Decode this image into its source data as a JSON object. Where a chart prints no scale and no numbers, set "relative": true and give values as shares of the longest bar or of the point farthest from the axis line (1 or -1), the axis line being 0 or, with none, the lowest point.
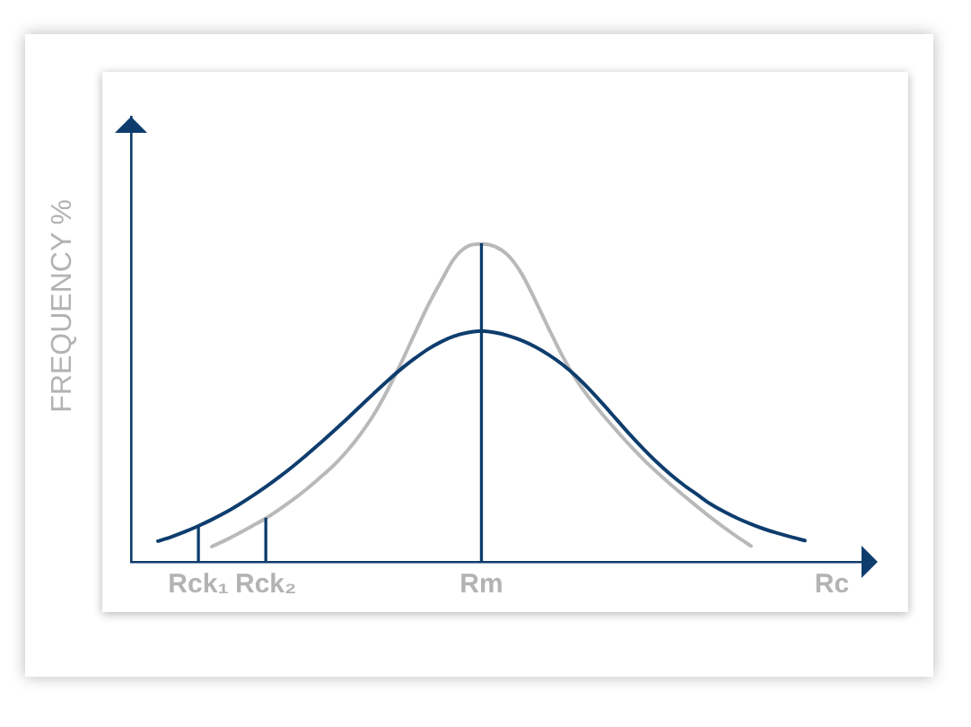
{
  "chart_data": {
    "type": "line",
    "ylabel": "FREQUENCY %",
    "relative": true,
    "marker": "none",
    "grid": false,
    "tick_labels": "x",
    "categories": [
      null,
      null,
      null,
      null,
      null,
      "Rck₁",
      null,
      null,
      null,
      null,
      "Rck₂",
      null,
      null,
      null,
      null,
      null,
      null,
      null,
      null,
      null,
      null,
      null,
      null,
      null,
      null,
      null,
      "Rm",
      null,
      null,
      null,
      null,
      null,
      null,
      null,
      null,
      null,
      null,
      null,
      null,
      null,
      null,
      null,
      null,
      null,
      null,
      null,
      null,
      null,
      null,
      null,
      null,
      null,
      "Rc",
      null,
      null,
      null
    ],
    "series": [
      {
        "color": "#b9b9b9",
        "values": [
          null,
          null,
          null,
          null,
          null,
          null,
          0.048,
          0.068,
          0.09,
          0.113,
          0.137,
          0.165,
          0.195,
          0.228,
          0.264,
          0.302,
          0.347,
          0.4,
          0.462,
          0.537,
          0.622,
          0.713,
          0.803,
          0.882,
          0.955,
          0.993,
          1,
          0.992,
          0.963,
          0.905,
          0.822,
          0.733,
          0.648,
          0.575,
          0.515,
          0.463,
          0.414,
          0.367,
          0.323,
          0.283,
          0.245,
          0.209,
          0.174,
          0.14,
          0.108,
          0.078,
          0.05,
          null,
          null,
          null,
          null,
          null,
          null,
          null,
          null,
          null
        ]
      },
      {
        "color": "#0e3d6d",
        "values": [
          null,
          null,
          0.065,
          0.079,
          0.095,
          0.113,
          0.133,
          0.155,
          0.18,
          0.207,
          0.236,
          0.267,
          0.3,
          0.335,
          0.372,
          0.41,
          0.449,
          0.489,
          0.529,
          0.568,
          0.605,
          0.638,
          0.668,
          0.692,
          0.71,
          0.721,
          0.726,
          0.721,
          0.711,
          0.696,
          0.676,
          0.651,
          0.621,
          0.585,
          0.543,
          0.497,
          0.449,
          0.401,
          0.356,
          0.314,
          0.276,
          0.242,
          0.212,
          0.182,
          0.158,
          0.137,
          0.119,
          0.103,
          0.09,
          0.078,
          0.067,
          null,
          null,
          null,
          null,
          null
        ]
      },
      {
        "type": "bar",
        "color": "#0e3d6d",
        "values": [
          null,
          null,
          null,
          null,
          null,
          0.113,
          null,
          null,
          null,
          null,
          0.137,
          null,
          null,
          null,
          null,
          null,
          null,
          null,
          null,
          null,
          null,
          null,
          null,
          null,
          null,
          null,
          1,
          null,
          null,
          null,
          null,
          null,
          null,
          null,
          null,
          null,
          null,
          null,
          null,
          null,
          null,
          null,
          null,
          null,
          null,
          null,
          null,
          null,
          null,
          null,
          null,
          null,
          null,
          null,
          null,
          null
        ]
      }
    ]
  }
}
